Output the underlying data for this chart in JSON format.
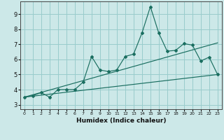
{
  "xlabel": "Humidex (Indice chaleur)",
  "bg_color": "#cce8e8",
  "grid_color": "#99cccc",
  "line_color": "#1a6e60",
  "xlim": [
    -0.5,
    23.5
  ],
  "ylim": [
    2.7,
    9.85
  ],
  "xticks": [
    0,
    1,
    2,
    3,
    4,
    5,
    6,
    7,
    8,
    9,
    10,
    11,
    12,
    13,
    14,
    15,
    16,
    17,
    18,
    19,
    20,
    21,
    22,
    23
  ],
  "yticks": [
    3,
    4,
    5,
    6,
    7,
    8,
    9
  ],
  "main_x": [
    0,
    1,
    2,
    3,
    4,
    5,
    6,
    7,
    8,
    9,
    10,
    11,
    12,
    13,
    14,
    15,
    16,
    17,
    18,
    19,
    20,
    21,
    22,
    23
  ],
  "main_y": [
    3.5,
    3.6,
    3.8,
    3.5,
    4.0,
    4.0,
    4.0,
    4.5,
    6.2,
    5.3,
    5.2,
    5.3,
    6.2,
    6.35,
    7.75,
    9.5,
    7.75,
    6.55,
    6.6,
    7.05,
    6.95,
    5.9,
    6.15,
    5.0
  ],
  "trend1_x": [
    0,
    23
  ],
  "trend1_y": [
    3.5,
    5.0
  ],
  "trend2_x": [
    0,
    23
  ],
  "trend2_y": [
    3.5,
    7.1
  ]
}
